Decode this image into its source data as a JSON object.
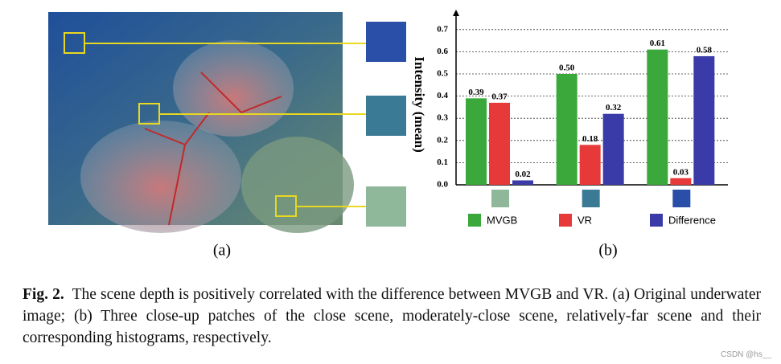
{
  "figure": {
    "panel_labels": [
      "(a)",
      "(b)"
    ],
    "caption": {
      "label": "Fig. 2.",
      "text": "The scene depth is positively correlated with the difference between MVGB and VR. (a) Original underwater image; (b) Three close-up patches of the close scene, moderately-close scene, relatively-far scene and their corresponding histograms, respectively."
    },
    "watermark": "CSDN @hs__"
  },
  "chart_data": {
    "type": "bar",
    "y_label": "Intensity (mean)",
    "categories": [
      null,
      null,
      null
    ],
    "series": [
      {
        "name": "MVGB",
        "color": "#3aa83a",
        "values": [
          0.39,
          0.5,
          0.61
        ],
        "value_labels": [
          "0.39",
          "0.50",
          "0.61"
        ]
      },
      {
        "name": "VR",
        "color": "#e8393a",
        "values": [
          0.37,
          0.18,
          0.03
        ],
        "value_labels": [
          "0.37",
          "0.18",
          "0.03"
        ]
      },
      {
        "name": "Difference",
        "color": "#3a3aa8",
        "values": [
          0.02,
          0.32,
          0.58
        ],
        "value_labels": [
          "0.02",
          "0.32",
          "0.58"
        ]
      }
    ],
    "ylim": [
      0,
      0.75
    ],
    "yticks": [
      {
        "value": 0,
        "label": "0.0"
      },
      0.1,
      0.2,
      0.3,
      0.4,
      0.5,
      0.6,
      0.7
    ],
    "grid": true
  }
}
